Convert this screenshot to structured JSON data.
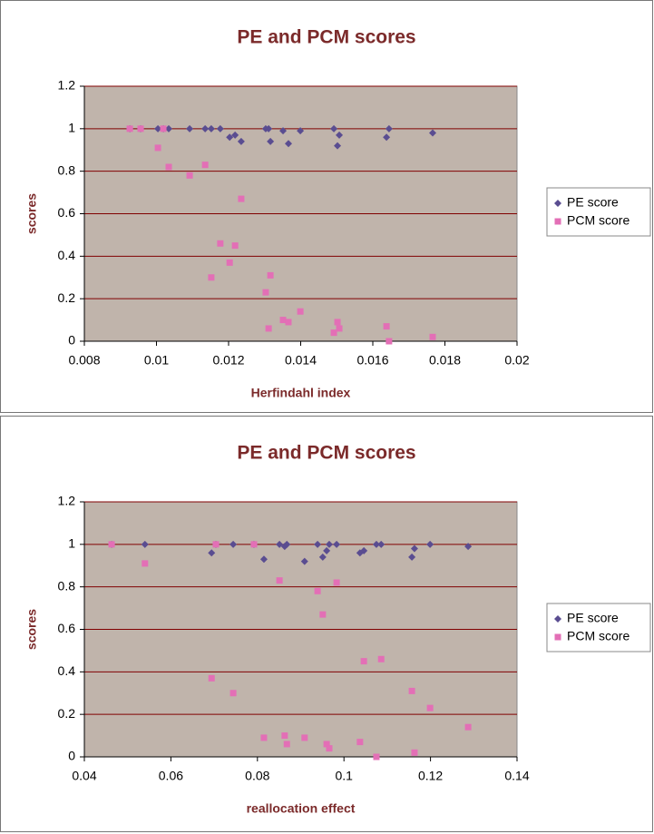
{
  "chart_data": [
    {
      "type": "scatter",
      "title": "PE and PCM scores",
      "x_label": "Herfindahl index",
      "y_label": "scores",
      "x": [
        0.00926,
        0.00956,
        0.01004,
        0.01019,
        0.01034,
        0.01092,
        0.01135,
        0.01152,
        0.01177,
        0.01203,
        0.01218,
        0.01235,
        0.01303,
        0.01311,
        0.01316,
        0.01351,
        0.01366,
        0.01399,
        0.01492,
        0.01502,
        0.01507,
        0.01638,
        0.01645,
        0.01766
      ],
      "series": [
        {
          "name": "PE score",
          "color": "#5a4d91",
          "marker": "diamond",
          "values": [
            1.0,
            1.0,
            1.0,
            1.0,
            1.0,
            1.0,
            1.0,
            1.0,
            1.0,
            0.96,
            0.97,
            0.94,
            1.0,
            1.0,
            0.94,
            0.99,
            0.93,
            0.99,
            1.0,
            0.92,
            0.97,
            0.96,
            1.0,
            0.98
          ]
        },
        {
          "name": "PCM score",
          "color": "#e36fb6",
          "marker": "square",
          "values": [
            1.0,
            1.0,
            0.91,
            1.0,
            0.82,
            0.78,
            0.83,
            0.3,
            0.46,
            0.37,
            0.45,
            0.67,
            0.23,
            0.06,
            0.31,
            0.1,
            0.09,
            0.14,
            0.04,
            0.09,
            0.06,
            0.07,
            0.0,
            0.02
          ]
        }
      ],
      "xlim": [
        0.008,
        0.02
      ],
      "xticks": [
        0.008,
        0.01,
        0.012,
        0.014,
        0.016,
        0.018,
        0.02
      ],
      "ylim": [
        0,
        1.2
      ],
      "yticks": [
        0,
        0.2,
        0.4,
        0.6,
        0.8,
        1,
        1.2
      ],
      "grid": true,
      "legend": "right"
    },
    {
      "type": "scatter",
      "title": "PE and PCM scores",
      "x_label": "reallocation effect",
      "y_label": "scores",
      "x": [
        0.0463,
        0.054,
        0.0694,
        0.0704,
        0.0744,
        0.0792,
        0.0815,
        0.0851,
        0.0863,
        0.0868,
        0.0909,
        0.0939,
        0.0951,
        0.096,
        0.0966,
        0.0983,
        0.1037,
        0.1046,
        0.1075,
        0.1086,
        0.1157,
        0.1163,
        0.1199,
        0.1287
      ],
      "series": [
        {
          "name": "PE score",
          "color": "#5a4d91",
          "marker": "diamond",
          "values": [
            1.0,
            1.0,
            0.96,
            1.0,
            1.0,
            1.0,
            0.93,
            1.0,
            0.99,
            1.0,
            0.92,
            1.0,
            0.94,
            0.97,
            1.0,
            1.0,
            0.96,
            0.97,
            1.0,
            1.0,
            0.94,
            0.98,
            1.0,
            0.99
          ]
        },
        {
          "name": "PCM score",
          "color": "#e36fb6",
          "marker": "square",
          "values": [
            1.0,
            0.91,
            0.37,
            1.0,
            0.3,
            1.0,
            0.09,
            0.83,
            0.1,
            0.06,
            0.09,
            0.78,
            0.67,
            0.06,
            0.04,
            0.82,
            0.07,
            0.45,
            0.0,
            0.46,
            0.31,
            0.02,
            0.23,
            0.14
          ]
        }
      ],
      "xlim": [
        0.04,
        0.14
      ],
      "xticks": [
        0.04,
        0.06,
        0.08,
        0.1,
        0.12,
        0.14
      ],
      "ylim": [
        0,
        1.2
      ],
      "yticks": [
        0,
        0.2,
        0.4,
        0.6,
        0.8,
        1,
        1.2
      ],
      "grid": true,
      "legend": "right"
    }
  ]
}
